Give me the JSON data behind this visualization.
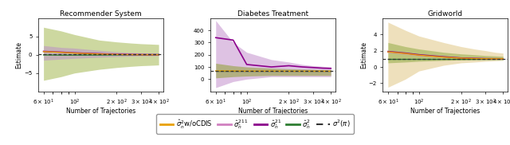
{
  "fig_width": 6.4,
  "fig_height": 1.82,
  "dpi": 100,
  "titles": [
    "Recommender System",
    "Diabetes Treatment",
    "Gridworld"
  ],
  "xlabel": "Number of Trajectories",
  "ylabel": "Estimate",
  "x_vals": [
    60,
    80,
    100,
    150,
    200,
    250,
    300,
    350,
    400
  ],
  "x_lim": [
    55,
    430
  ],
  "panels": [
    {
      "ylim": [
        -10,
        10
      ],
      "yticks": [
        -5,
        0,
        5
      ],
      "green_fill_lo": [
        -7.0,
        -6.0,
        -5.0,
        -4.0,
        -3.5,
        -3.2,
        -3.0,
        -2.9,
        -2.8
      ],
      "green_fill_hi": [
        7.5,
        6.5,
        5.5,
        4.0,
        3.5,
        3.2,
        3.0,
        2.9,
        2.8
      ],
      "pink_fill_lo": [
        -1.5,
        -1.2,
        -1.0,
        -0.7,
        -0.5,
        -0.4,
        -0.3,
        -0.3,
        -0.25
      ],
      "pink_fill_hi": [
        2.5,
        2.0,
        1.8,
        1.2,
        0.8,
        0.6,
        0.5,
        0.4,
        0.35
      ],
      "pink_mean": [
        1.0,
        0.8,
        0.6,
        0.35,
        0.2,
        0.15,
        0.1,
        0.08,
        0.07
      ],
      "purple_mean": [
        0.9,
        0.7,
        0.5,
        0.25,
        0.1,
        0.05,
        0.02,
        0.01,
        0.01
      ],
      "orange_mean": [
        0.85,
        0.65,
        0.45,
        0.2,
        0.08,
        0.04,
        0.02,
        0.01,
        0.01
      ],
      "green_mean": [
        -0.05,
        -0.1,
        -0.1,
        -0.08,
        -0.05,
        -0.02,
        0.0,
        0.01,
        0.02
      ],
      "dashed_val": 0.05
    },
    {
      "ylim": [
        -100,
        500
      ],
      "yticks": [
        0,
        100,
        200,
        300,
        400
      ],
      "green_fill_lo": [
        -70,
        -20,
        0,
        20,
        20,
        20,
        20,
        20,
        20
      ],
      "green_fill_hi": [
        480,
        300,
        220,
        160,
        140,
        120,
        110,
        105,
        100
      ],
      "pink_fill_lo": [
        10,
        20,
        25,
        30,
        30,
        30,
        30,
        30,
        30
      ],
      "pink_fill_hi": [
        130,
        110,
        100,
        90,
        85,
        82,
        80,
        78,
        76
      ],
      "pink_mean": [
        65,
        65,
        65,
        65,
        65,
        65,
        65,
        65,
        65
      ],
      "purple_mean": [
        340,
        320,
        120,
        100,
        110,
        100,
        95,
        90,
        88
      ],
      "orange_mean": [
        68,
        67,
        66,
        66,
        65,
        65,
        65,
        65,
        65
      ],
      "green_mean": [
        65,
        65,
        65,
        65,
        65,
        65,
        65,
        65,
        65
      ],
      "dashed_val": 65
    },
    {
      "ylim": [
        -3,
        6
      ],
      "yticks": [
        -2,
        0,
        2,
        4
      ],
      "green_fill_lo": [
        -2.5,
        -1.5,
        -0.5,
        0.2,
        0.5,
        0.6,
        0.7,
        0.75,
        0.8
      ],
      "green_fill_hi": [
        5.5,
        4.5,
        3.8,
        3.0,
        2.5,
        2.2,
        2.0,
        1.8,
        1.7
      ],
      "pink_fill_lo": [
        0.5,
        0.6,
        0.7,
        0.8,
        0.85,
        0.88,
        0.9,
        0.92,
        0.93
      ],
      "pink_fill_hi": [
        3.0,
        2.5,
        2.2,
        1.8,
        1.6,
        1.5,
        1.4,
        1.35,
        1.3
      ],
      "pink_mean": [
        1.8,
        1.6,
        1.4,
        1.2,
        1.1,
        1.05,
        1.02,
        1.01,
        1.0
      ],
      "purple_mean": [
        1.9,
        1.7,
        1.5,
        1.25,
        1.1,
        1.05,
        1.02,
        1.01,
        1.0
      ],
      "orange_mean": [
        1.85,
        1.65,
        1.45,
        1.2,
        1.08,
        1.03,
        1.01,
        1.0,
        1.0
      ],
      "green_mean": [
        1.0,
        1.0,
        1.0,
        1.0,
        1.0,
        1.0,
        1.0,
        1.0,
        1.0
      ],
      "dashed_val": 1.0
    }
  ],
  "colors": {
    "orange": "#E8A000",
    "pink_fill": "#D4A0D4",
    "pink_line": "#D080C0",
    "purple": "#8B008B",
    "green_fill": "#A8B870",
    "green_fill2": "#C8D890",
    "green_line": "#2E7D32",
    "dashed": "#333333",
    "tan_fill": "#D4C080",
    "tan_fill2": "#E8D8A0"
  }
}
